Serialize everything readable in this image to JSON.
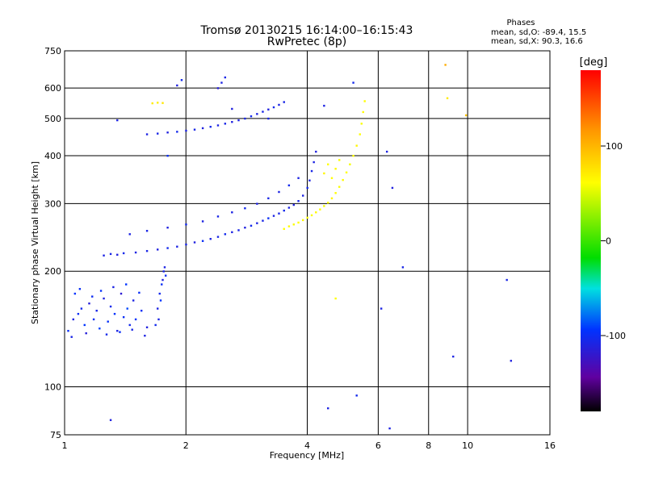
{
  "chart_data": {
    "type": "scatter",
    "title": "Tromsø 20130215 16:14:00–16:15:43",
    "subtitle": "RwPretec (8p)",
    "xlabel": "Frequency [MHz]",
    "ylabel": "Stationary phase Virtual Height [km]",
    "x_scale": "log",
    "y_scale": "log",
    "xlim": [
      1,
      16
    ],
    "ylim": [
      75,
      750
    ],
    "grid": true,
    "x_ticks": [
      1,
      2,
      4,
      6,
      8,
      10,
      16
    ],
    "y_ticks": [
      75,
      100,
      200,
      300,
      400,
      500,
      600,
      750
    ],
    "phases_box": {
      "title": "Phases",
      "line_o": "mean, sd,O: -89.4, 15.5",
      "line_x": "mean, sd,X:  90.3, 16.6"
    },
    "colorbar": {
      "label": "[deg]",
      "range": [
        -180,
        180
      ],
      "ticks": [
        -100,
        0,
        100
      ]
    },
    "series": [
      {
        "points": [
          [
            1.05,
            150,
            -110
          ],
          [
            1.08,
            155,
            -100
          ],
          [
            1.1,
            160,
            -105
          ],
          [
            1.12,
            145,
            -95
          ],
          [
            1.15,
            165,
            -115
          ],
          [
            1.18,
            150,
            -100
          ],
          [
            1.2,
            158,
            -108
          ],
          [
            1.22,
            142,
            -92
          ],
          [
            1.25,
            170,
            -112
          ],
          [
            1.28,
            148,
            -98
          ],
          [
            1.3,
            162,
            -104
          ],
          [
            1.33,
            155,
            -96
          ],
          [
            1.35,
            140,
            -110
          ],
          [
            1.38,
            175,
            -118
          ],
          [
            1.4,
            152,
            -100
          ],
          [
            1.43,
            160,
            -90
          ],
          [
            1.45,
            145,
            -105
          ],
          [
            1.48,
            168,
            -110
          ],
          [
            1.5,
            150,
            -95
          ],
          [
            1.55,
            158,
            -100
          ],
          [
            1.6,
            143,
            -112
          ],
          [
            1.02,
            140,
            -100
          ],
          [
            1.04,
            135,
            -108
          ],
          [
            1.06,
            175,
            -95
          ],
          [
            1.09,
            180,
            -100
          ],
          [
            1.13,
            138,
            -115
          ],
          [
            1.17,
            172,
            -102
          ],
          [
            1.23,
            178,
            -98
          ],
          [
            1.27,
            137,
            -106
          ],
          [
            1.32,
            182,
            -110
          ],
          [
            1.37,
            139,
            -100
          ],
          [
            1.42,
            185,
            -95
          ],
          [
            1.47,
            141,
            -108
          ],
          [
            1.53,
            176,
            -100
          ],
          [
            1.58,
            136,
            -110
          ],
          [
            1.7,
            160,
            -110
          ],
          [
            1.72,
            175,
            -105
          ],
          [
            1.74,
            185,
            -100
          ],
          [
            1.75,
            190,
            -112
          ],
          [
            1.76,
            200,
            -108
          ],
          [
            1.73,
            168,
            -95
          ],
          [
            1.71,
            150,
            -110
          ],
          [
            1.78,
            195,
            -100
          ],
          [
            1.68,
            145,
            -105
          ],
          [
            1.77,
            205,
            -110
          ]
        ]
      },
      {
        "points": [
          [
            1.25,
            220,
            -110
          ],
          [
            1.3,
            222,
            -108
          ],
          [
            1.35,
            221,
            -112
          ],
          [
            1.4,
            223,
            -105
          ],
          [
            1.5,
            224,
            -110
          ],
          [
            1.6,
            226,
            -108
          ],
          [
            1.7,
            228,
            -112
          ],
          [
            1.8,
            230,
            -105
          ],
          [
            1.9,
            232,
            -110
          ],
          [
            2.0,
            235,
            -108
          ],
          [
            2.1,
            238,
            -112
          ],
          [
            2.2,
            240,
            -100
          ],
          [
            2.3,
            243,
            -110
          ],
          [
            2.4,
            246,
            -108
          ],
          [
            2.5,
            250,
            -105
          ],
          [
            2.6,
            253,
            -110
          ],
          [
            2.7,
            256,
            -108
          ],
          [
            2.8,
            260,
            -112
          ],
          [
            2.9,
            263,
            -105
          ],
          [
            3.0,
            267,
            -110
          ],
          [
            3.1,
            271,
            -108
          ],
          [
            3.2,
            275,
            -100
          ],
          [
            3.3,
            279,
            -110
          ],
          [
            3.4,
            283,
            -108
          ],
          [
            3.5,
            288,
            -105
          ],
          [
            3.6,
            293,
            -110
          ],
          [
            3.7,
            298,
            -112
          ],
          [
            3.8,
            305,
            -108
          ],
          [
            3.9,
            315,
            -110
          ],
          [
            4.0,
            330,
            -105
          ],
          [
            4.05,
            345,
            -110
          ],
          [
            4.1,
            365,
            -108
          ],
          [
            4.15,
            385,
            -110
          ],
          [
            4.2,
            410,
            -112
          ],
          [
            1.45,
            250,
            -110
          ],
          [
            1.6,
            255,
            -108
          ],
          [
            1.8,
            260,
            -112
          ],
          [
            2.0,
            265,
            -105
          ],
          [
            2.2,
            270,
            -110
          ],
          [
            2.4,
            278,
            -108
          ],
          [
            2.6,
            285,
            -110
          ],
          [
            2.8,
            292,
            -105
          ],
          [
            3.0,
            300,
            -110
          ],
          [
            3.2,
            310,
            -108
          ],
          [
            3.4,
            322,
            -110
          ],
          [
            3.6,
            335,
            -105
          ],
          [
            3.8,
            350,
            -110
          ]
        ]
      },
      {
        "points": [
          [
            1.6,
            455,
            -110
          ],
          [
            1.7,
            457,
            -108
          ],
          [
            1.8,
            460,
            -112
          ],
          [
            1.9,
            462,
            -105
          ],
          [
            2.0,
            465,
            -110
          ],
          [
            2.1,
            468,
            -108
          ],
          [
            2.2,
            472,
            -112
          ],
          [
            2.3,
            476,
            -105
          ],
          [
            2.4,
            480,
            -110
          ],
          [
            2.5,
            485,
            -108
          ],
          [
            2.6,
            490,
            -112
          ],
          [
            2.7,
            495,
            -110
          ],
          [
            2.8,
            500,
            -108
          ],
          [
            2.9,
            507,
            -105
          ],
          [
            3.0,
            514,
            -110
          ],
          [
            3.1,
            521,
            -108
          ],
          [
            3.2,
            528,
            -112
          ],
          [
            3.3,
            535,
            -105
          ],
          [
            3.4,
            543,
            -110
          ],
          [
            3.5,
            552,
            -108
          ],
          [
            2.4,
            600,
            -115
          ],
          [
            2.45,
            620,
            -110
          ],
          [
            2.5,
            640,
            -108
          ],
          [
            1.9,
            610,
            -112
          ],
          [
            1.95,
            630,
            -105
          ]
        ]
      },
      {
        "points": [
          [
            3.5,
            258,
            100
          ],
          [
            3.6,
            262,
            102
          ],
          [
            3.7,
            265,
            98
          ],
          [
            3.8,
            268,
            100
          ],
          [
            3.9,
            272,
            104
          ],
          [
            4.0,
            276,
            100
          ],
          [
            4.1,
            280,
            98
          ],
          [
            4.2,
            285,
            102
          ],
          [
            4.3,
            290,
            100
          ],
          [
            4.4,
            296,
            96
          ],
          [
            4.5,
            302,
            100
          ],
          [
            4.6,
            310,
            104
          ],
          [
            4.7,
            320,
            100
          ],
          [
            4.8,
            332,
            98
          ],
          [
            4.9,
            346,
            102
          ],
          [
            5.0,
            362,
            100
          ],
          [
            5.1,
            380,
            96
          ],
          [
            5.2,
            400,
            100
          ],
          [
            5.3,
            425,
            104
          ],
          [
            5.4,
            455,
            100
          ],
          [
            5.45,
            485,
            98
          ],
          [
            5.5,
            520,
            102
          ],
          [
            5.55,
            555,
            100
          ],
          [
            4.6,
            350,
            100
          ],
          [
            4.7,
            370,
            102
          ],
          [
            4.8,
            390,
            98
          ],
          [
            4.5,
            380,
            100
          ],
          [
            4.4,
            360,
            104
          ],
          [
            1.65,
            548,
            110
          ],
          [
            1.7,
            550,
            108
          ],
          [
            1.75,
            549,
            112
          ]
        ]
      },
      {
        "points": [
          [
            1.35,
            495,
            -110
          ],
          [
            1.8,
            400,
            -100
          ],
          [
            2.6,
            530,
            -112
          ],
          [
            3.2,
            500,
            -108
          ],
          [
            4.4,
            540,
            -110
          ],
          [
            5.2,
            620,
            -105
          ],
          [
            6.3,
            410,
            -110
          ],
          [
            6.5,
            330,
            -112
          ],
          [
            6.9,
            205,
            -108
          ],
          [
            6.1,
            160,
            -110
          ],
          [
            8.8,
            690,
            140
          ],
          [
            8.9,
            565,
            110
          ],
          [
            9.9,
            510,
            130
          ],
          [
            9.2,
            120,
            -110
          ],
          [
            12.5,
            190,
            -108
          ],
          [
            12.8,
            117,
            -112
          ],
          [
            4.5,
            88,
            -110
          ],
          [
            5.3,
            95,
            -105
          ],
          [
            6.4,
            78,
            -110
          ],
          [
            1.3,
            82,
            -112
          ],
          [
            4.7,
            170,
            100
          ]
        ]
      }
    ]
  }
}
